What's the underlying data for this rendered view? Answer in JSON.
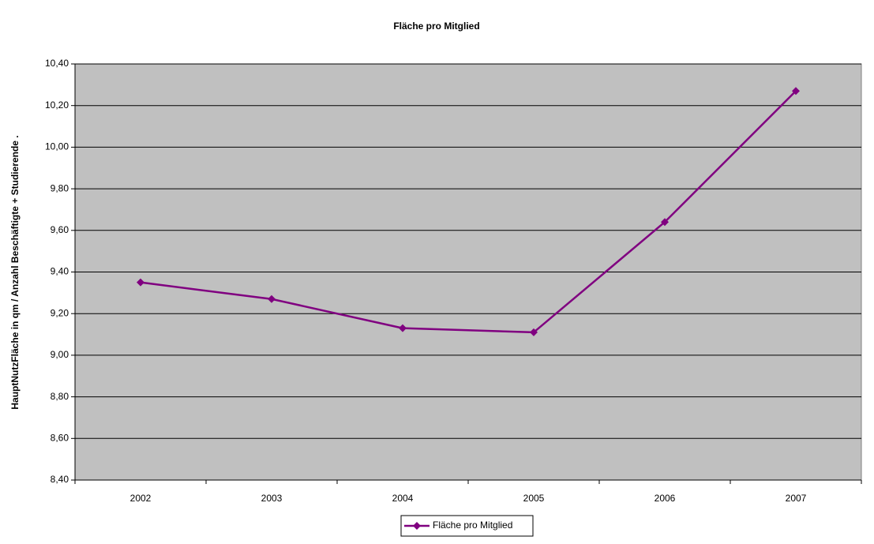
{
  "chart_data": {
    "type": "line",
    "title": "Fläche pro Mitglied",
    "y_label": "HauptNutzFläche in qm / Anzahl Beschäftigte + Studierende .",
    "categories": [
      "2002",
      "2003",
      "2004",
      "2005",
      "2006",
      "2007"
    ],
    "series": [
      {
        "name": "Fläche pro Mitglied",
        "color": "#800080",
        "values": [
          9.35,
          9.27,
          9.13,
          9.11,
          9.64,
          10.27
        ]
      }
    ],
    "ylim": [
      8.4,
      10.4
    ],
    "yticks": [
      {
        "value": 8.4,
        "label": "8,40"
      },
      {
        "value": 8.6,
        "label": "8,60"
      },
      {
        "value": 8.8,
        "label": "8,80"
      },
      {
        "value": 9.0,
        "label": "9,00"
      },
      {
        "value": 9.2,
        "label": "9,20"
      },
      {
        "value": 9.4,
        "label": "9,40"
      },
      {
        "value": 9.6,
        "label": "9,60"
      },
      {
        "value": 9.8,
        "label": "9,80"
      },
      {
        "value": 10.0,
        "label": "10,00"
      },
      {
        "value": 10.2,
        "label": "10,20"
      },
      {
        "value": 10.4,
        "label": "10,40"
      }
    ],
    "grid": true,
    "plot_background": "#c0c0c0",
    "legend": "bottom"
  }
}
